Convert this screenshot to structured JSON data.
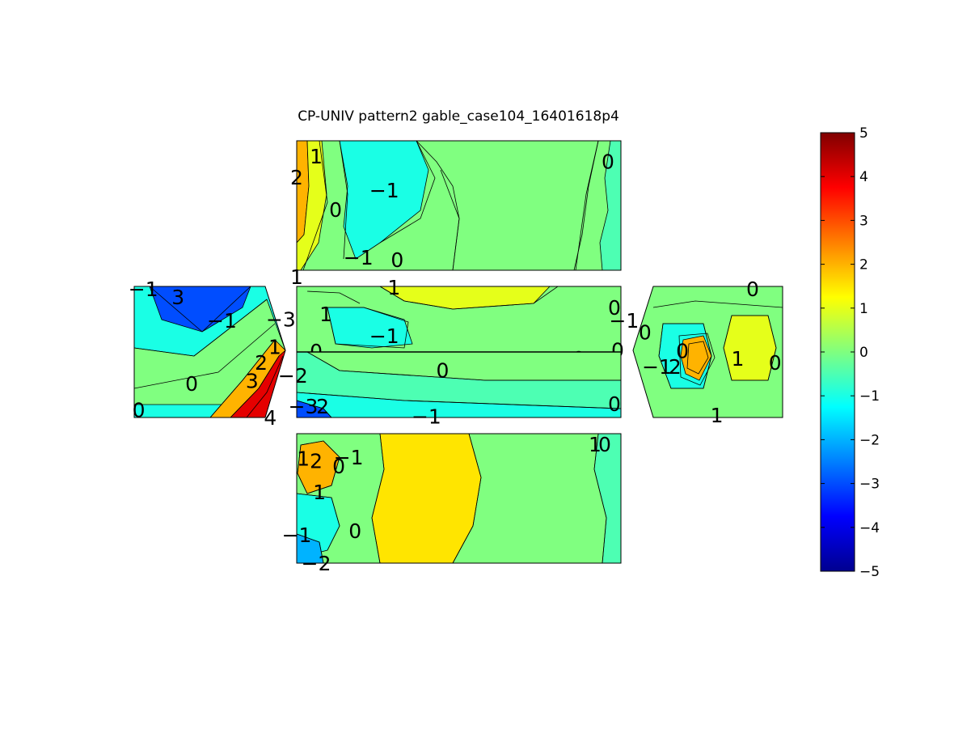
{
  "chart_data": {
    "type": "contour",
    "title": "CP-UNIV pattern2 gable_case104_16401618p4",
    "colormap": "jet",
    "clim": [
      -5,
      5
    ],
    "colorbar": {
      "ticks": [
        -5,
        -4,
        -3,
        -2,
        -1,
        0,
        1,
        2,
        3,
        4,
        5
      ],
      "tick_labels": [
        "−5",
        "−4",
        "−3",
        "−2",
        "−1",
        "0",
        "1",
        "2",
        "3",
        "4",
        "5"
      ],
      "location": "right"
    },
    "panels": [
      {
        "name": "top-face",
        "background_level": 0,
        "regions": [
          {
            "level": 2,
            "kind": "left-edge-strip"
          },
          {
            "level": 1,
            "kind": "left-band"
          },
          {
            "level": -1,
            "kind": "left-center-lobe"
          },
          {
            "level": 0,
            "kind": "mid-band"
          },
          {
            "level": -0.5,
            "kind": "right-edge-strip"
          }
        ],
        "labels": [
          {
            "text": "1",
            "u": 0.06,
            "v": 0.12
          },
          {
            "text": "2",
            "u": 0.0,
            "v": 0.28
          },
          {
            "text": "−1",
            "u": 0.27,
            "v": 0.38
          },
          {
            "text": "0",
            "u": 0.12,
            "v": 0.53
          },
          {
            "text": "0",
            "u": 0.96,
            "v": 0.16
          },
          {
            "text": "−1",
            "u": 0.19,
            "v": 0.9
          },
          {
            "text": "0",
            "u": 0.31,
            "v": 0.92
          },
          {
            "text": "1",
            "u": 0.0,
            "v": 1.05
          }
        ]
      },
      {
        "name": "front-face-upper",
        "background_level": 0,
        "regions": [
          {
            "level": 1,
            "kind": "top-center-band"
          },
          {
            "level": -1,
            "kind": "left-center-lobe"
          }
        ],
        "labels": [
          {
            "text": "1",
            "u": 0.3,
            "v": 0.01
          },
          {
            "text": "1",
            "u": 0.09,
            "v": 0.42
          },
          {
            "text": "−1",
            "u": 0.27,
            "v": 0.75
          },
          {
            "text": "0",
            "u": 0.06,
            "v": 0.99
          },
          {
            "text": "0",
            "u": 0.98,
            "v": 0.32
          },
          {
            "text": "0",
            "u": 0.87,
            "v": 1.1
          },
          {
            "text": "0",
            "u": 0.99,
            "v": 0.97
          }
        ]
      },
      {
        "name": "front-face-lower",
        "background_level": -0.5,
        "regions": [
          {
            "level": 0,
            "kind": "mid-band"
          },
          {
            "level": -1,
            "kind": "bottom-band"
          },
          {
            "level": -3,
            "kind": "bottom-left-corner"
          }
        ],
        "labels": [
          {
            "text": "0",
            "u": 0.45,
            "v": 0.28
          },
          {
            "text": "−1",
            "u": 0.4,
            "v": 0.98
          },
          {
            "text": "−3",
            "u": 0.02,
            "v": 0.83
          },
          {
            "text": "2",
            "u": 0.08,
            "v": 0.83
          },
          {
            "text": "0",
            "u": 0.98,
            "v": 0.79
          }
        ]
      },
      {
        "name": "left-gable",
        "background_level": -1,
        "regions": [
          {
            "level": -3,
            "kind": "upper-lobe"
          },
          {
            "level": 0,
            "kind": "diagonal-band"
          },
          {
            "level": 2,
            "kind": "lower-right-band"
          },
          {
            "level": 4,
            "kind": "lower-right-corner"
          }
        ],
        "labels": [
          {
            "text": "−1",
            "u": 0.06,
            "v": 0.02
          },
          {
            "text": "3",
            "u": 0.29,
            "v": 0.08
          },
          {
            "text": "−1",
            "u": 0.58,
            "v": 0.26
          },
          {
            "text": "−3",
            "u": 0.97,
            "v": 0.25
          },
          {
            "text": "1",
            "u": 0.93,
            "v": 0.46
          },
          {
            "text": "2",
            "u": 0.84,
            "v": 0.58
          },
          {
            "text": "−2",
            "u": 1.05,
            "v": 0.68
          },
          {
            "text": "3",
            "u": 0.78,
            "v": 0.72
          },
          {
            "text": "0",
            "u": 0.38,
            "v": 0.74
          },
          {
            "text": "0",
            "u": 0.03,
            "v": 0.94
          },
          {
            "text": "4",
            "u": 0.9,
            "v": 1.0
          }
        ]
      },
      {
        "name": "right-gable",
        "background_level": 0,
        "regions": [
          {
            "level": -1,
            "kind": "left-lobe"
          },
          {
            "level": 2,
            "kind": "central-peak"
          },
          {
            "level": 1,
            "kind": "right-lobe"
          }
        ],
        "labels": [
          {
            "text": "0",
            "u": 0.8,
            "v": 0.02
          },
          {
            "text": "−1",
            "u": -0.06,
            "v": 0.26
          },
          {
            "text": "0",
            "u": 0.08,
            "v": 0.35
          },
          {
            "text": "0",
            "u": 0.33,
            "v": 0.49
          },
          {
            "text": "−1",
            "u": 0.16,
            "v": 0.61
          },
          {
            "text": "2",
            "u": 0.28,
            "v": 0.61
          },
          {
            "text": "1",
            "u": 0.7,
            "v": 0.55
          },
          {
            "text": "0",
            "u": 0.95,
            "v": 0.58
          },
          {
            "text": "1",
            "u": 0.56,
            "v": 0.98
          }
        ]
      },
      {
        "name": "bottom-face",
        "background_level": 0,
        "regions": [
          {
            "level": 1.5,
            "kind": "center-left-band"
          },
          {
            "level": 2,
            "kind": "upper-left-peak"
          },
          {
            "level": -1,
            "kind": "left-lobes"
          },
          {
            "level": -2,
            "kind": "bottom-left-corner"
          },
          {
            "level": -0.5,
            "kind": "right-edge"
          }
        ],
        "labels": [
          {
            "text": "1",
            "u": 0.02,
            "v": 0.19
          },
          {
            "text": "2",
            "u": 0.06,
            "v": 0.21
          },
          {
            "text": "0",
            "u": 0.13,
            "v": 0.25
          },
          {
            "text": "−1",
            "u": 0.16,
            "v": 0.18
          },
          {
            "text": "1",
            "u": 0.07,
            "v": 0.45
          },
          {
            "text": "−1",
            "u": 0.0,
            "v": 0.78
          },
          {
            "text": "0",
            "u": 0.18,
            "v": 0.75
          },
          {
            "text": "−2",
            "u": 0.06,
            "v": 1.0
          },
          {
            "text": "1",
            "u": 0.92,
            "v": 0.08
          },
          {
            "text": "0",
            "u": 0.95,
            "v": 0.08
          }
        ]
      }
    ]
  }
}
